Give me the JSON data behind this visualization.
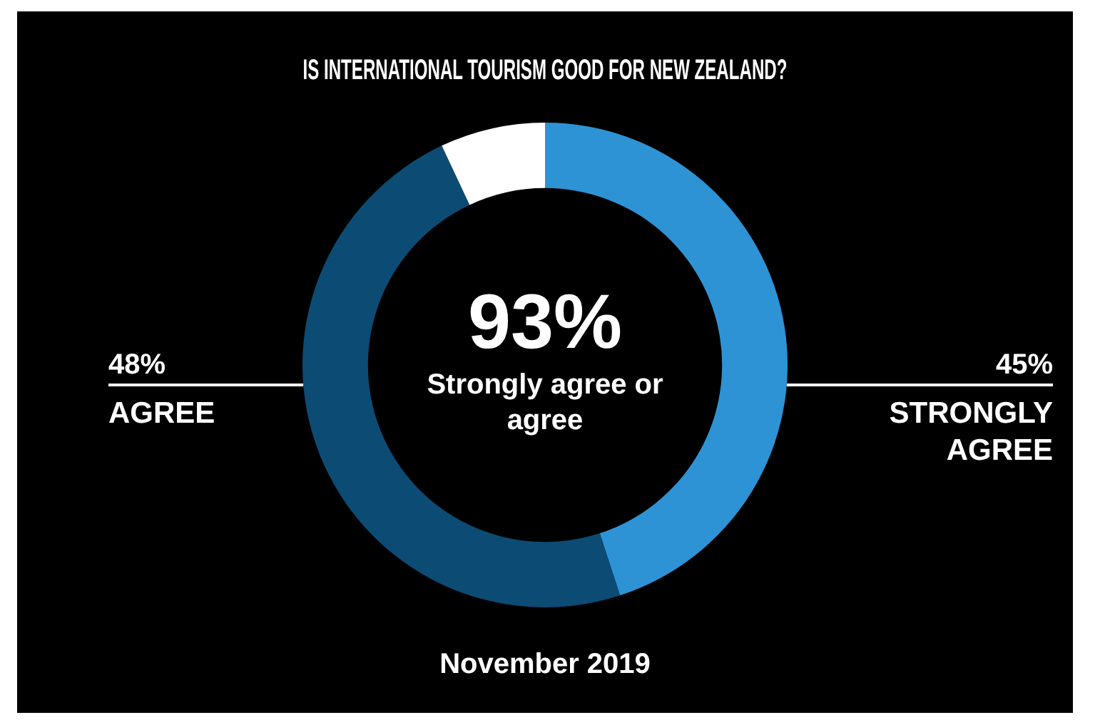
{
  "chart_data": {
    "type": "donut",
    "title": "IS INTERNATIONAL TOURISM GOOD FOR NEW ZEALAND?",
    "categories": [
      "STRONGLY AGREE",
      "AGREE",
      null
    ],
    "values": [
      45,
      48,
      7
    ],
    "colors": [
      "#2d93d5",
      "#0c4b74",
      "#ffffff"
    ],
    "value_labels": [
      "45%",
      "48%",
      null
    ],
    "annotations": [
      "93%",
      "Strongly agree or agree",
      "November 2019"
    ],
    "legend": false
  }
}
